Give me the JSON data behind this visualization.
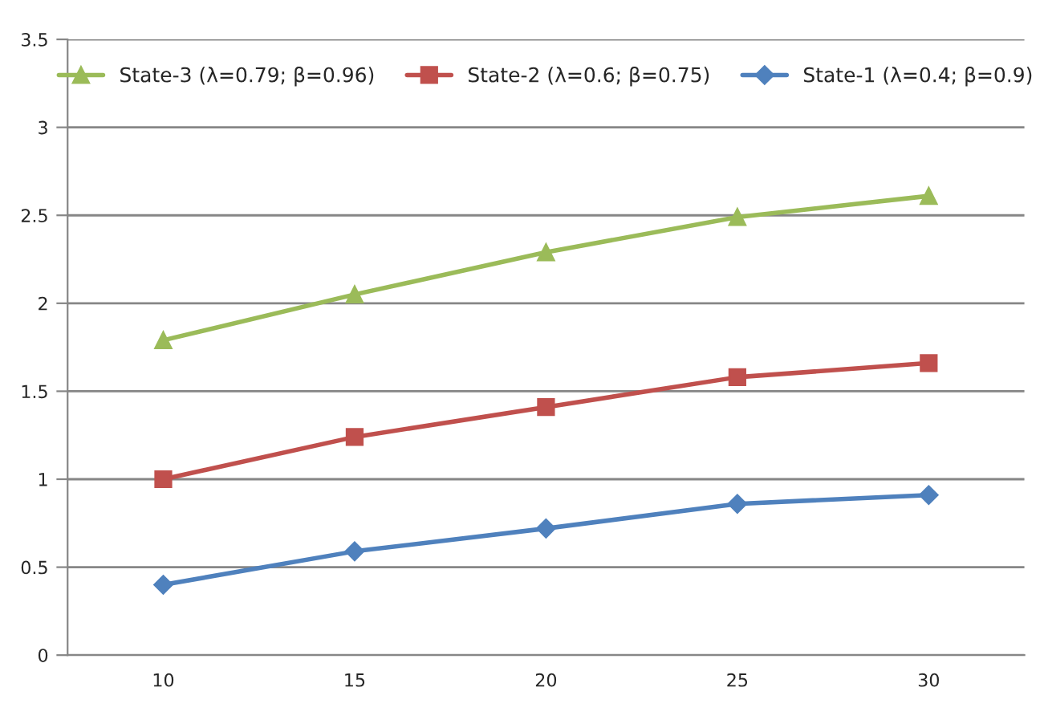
{
  "chart_data": {
    "type": "line",
    "categories": [
      "10",
      "15",
      "20",
      "25",
      "30"
    ],
    "series": [
      {
        "name": "State-3 (λ=0.79; β=0.96)",
        "color": "#9bbb59",
        "marker": "triangle",
        "values": [
          1.79,
          2.05,
          2.29,
          2.49,
          2.61
        ]
      },
      {
        "name": "State-2 (λ=0.6; β=0.75)",
        "color": "#c0504d",
        "marker": "square",
        "values": [
          1.0,
          1.24,
          1.41,
          1.58,
          1.66
        ]
      },
      {
        "name": "State-1 (λ=0.4; β=0.9)",
        "color": "#4f81bd",
        "marker": "diamond",
        "values": [
          0.4,
          0.59,
          0.72,
          0.86,
          0.91
        ]
      }
    ],
    "ylim": [
      0,
      3.5
    ],
    "yticks": [
      0,
      0.5,
      1,
      1.5,
      2,
      2.5,
      3,
      3.5
    ],
    "grid": "y",
    "legend": "top",
    "line_style": "solid"
  }
}
